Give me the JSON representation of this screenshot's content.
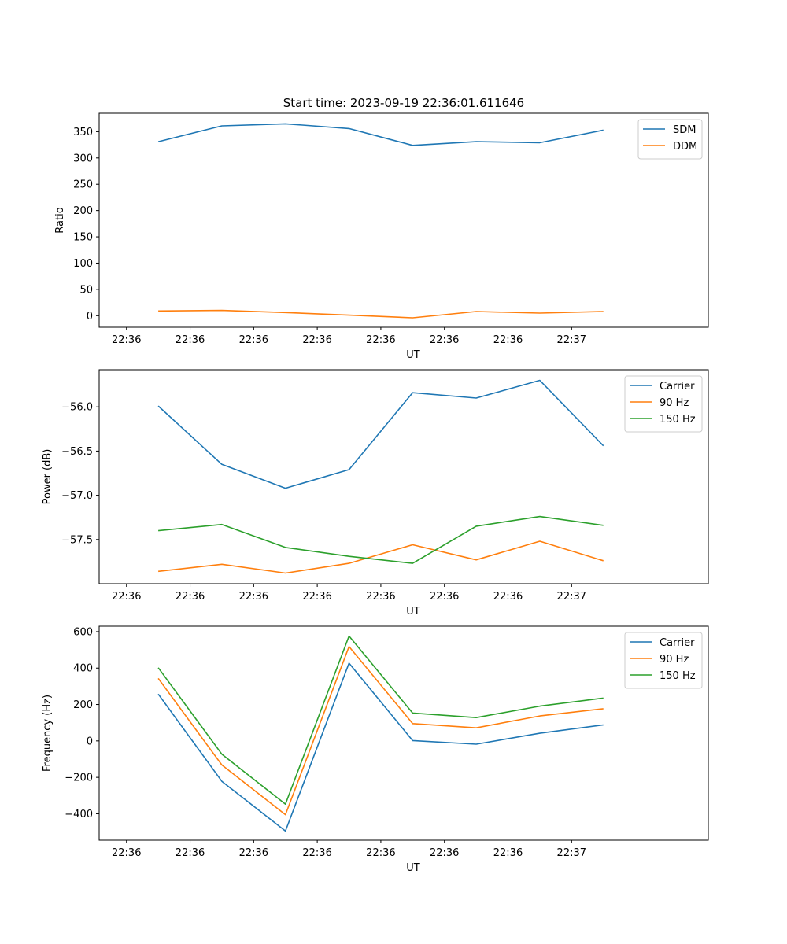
{
  "figure": {
    "title": "Start time: 2023-09-19 22:36:01.611646"
  },
  "colors": {
    "blue": "#1f77b4",
    "orange": "#ff7f0e",
    "green": "#2ca02c",
    "axis": "#000000",
    "legend_border": "#cccccc"
  },
  "chart_data": [
    {
      "type": "line",
      "xlabel": "UT",
      "ylabel": "Ratio",
      "x_ticks": [
        "22:36",
        "22:36",
        "22:36",
        "22:36",
        "22:36",
        "22:36",
        "22:36",
        "22:37"
      ],
      "xlim": [
        -0.43,
        9.15
      ],
      "x": [
        0.5,
        1.5,
        2.5,
        3.5,
        4.5,
        5.5,
        6.5,
        7.5
      ],
      "ylim": [
        -22,
        385
      ],
      "y_ticks": [
        0,
        50,
        100,
        150,
        200,
        250,
        300,
        350
      ],
      "y_tick_labels": [
        "0",
        "50",
        "100",
        "150",
        "200",
        "250",
        "300",
        "350"
      ],
      "legend": "top-right",
      "series": [
        {
          "name": "SDM",
          "color": "blue",
          "values": [
            331,
            361,
            365,
            356,
            324,
            331,
            329,
            353
          ]
        },
        {
          "name": "DDM",
          "color": "orange",
          "values": [
            9,
            10,
            6,
            1,
            -4,
            8,
            5,
            8
          ]
        }
      ]
    },
    {
      "type": "line",
      "xlabel": "UT",
      "ylabel": "Power (dB)",
      "x_ticks": [
        "22:36",
        "22:36",
        "22:36",
        "22:36",
        "22:36",
        "22:36",
        "22:36",
        "22:37"
      ],
      "xlim": [
        -0.43,
        9.15
      ],
      "x": [
        0.5,
        1.5,
        2.5,
        3.5,
        4.5,
        5.5,
        6.5,
        7.5
      ],
      "ylim": [
        -58.0,
        -55.58
      ],
      "y_ticks": [
        -57.5,
        -57.0,
        -56.5,
        -56.0
      ],
      "y_tick_labels": [
        "−57.5",
        "−57.0",
        "−56.5",
        "−56.0"
      ],
      "legend": "top-right",
      "series": [
        {
          "name": "Carrier",
          "color": "blue",
          "values": [
            -55.99,
            -56.65,
            -56.92,
            -56.71,
            -55.84,
            -55.9,
            -55.7,
            -56.44
          ]
        },
        {
          "name": "90 Hz",
          "color": "orange",
          "values": [
            -57.86,
            -57.78,
            -57.88,
            -57.77,
            -57.56,
            -57.73,
            -57.52,
            -57.74
          ]
        },
        {
          "name": "150 Hz",
          "color": "green",
          "values": [
            -57.4,
            -57.33,
            -57.59,
            -57.69,
            -57.77,
            -57.35,
            -57.24,
            -57.34
          ]
        }
      ]
    },
    {
      "type": "line",
      "xlabel": "UT",
      "ylabel": "Frequency (Hz)",
      "x_ticks": [
        "22:36",
        "22:36",
        "22:36",
        "22:36",
        "22:36",
        "22:36",
        "22:36",
        "22:37"
      ],
      "xlim": [
        -0.43,
        9.15
      ],
      "x": [
        0.5,
        1.5,
        2.5,
        3.5,
        4.5,
        5.5,
        6.5,
        7.5
      ],
      "ylim": [
        -545,
        630
      ],
      "y_ticks": [
        -400,
        -200,
        0,
        200,
        400,
        600
      ],
      "y_tick_labels": [
        "−400",
        "−200",
        "0",
        "200",
        "400",
        "600"
      ],
      "legend": "top-right",
      "series": [
        {
          "name": "Carrier",
          "color": "blue",
          "values": [
            257,
            -222,
            -495,
            427,
            2,
            -18,
            42,
            88
          ]
        },
        {
          "name": "90 Hz",
          "color": "orange",
          "values": [
            343,
            -132,
            -405,
            518,
            95,
            72,
            137,
            177
          ]
        },
        {
          "name": "150 Hz",
          "color": "green",
          "values": [
            402,
            -73,
            -347,
            576,
            153,
            128,
            191,
            235
          ]
        }
      ]
    }
  ]
}
